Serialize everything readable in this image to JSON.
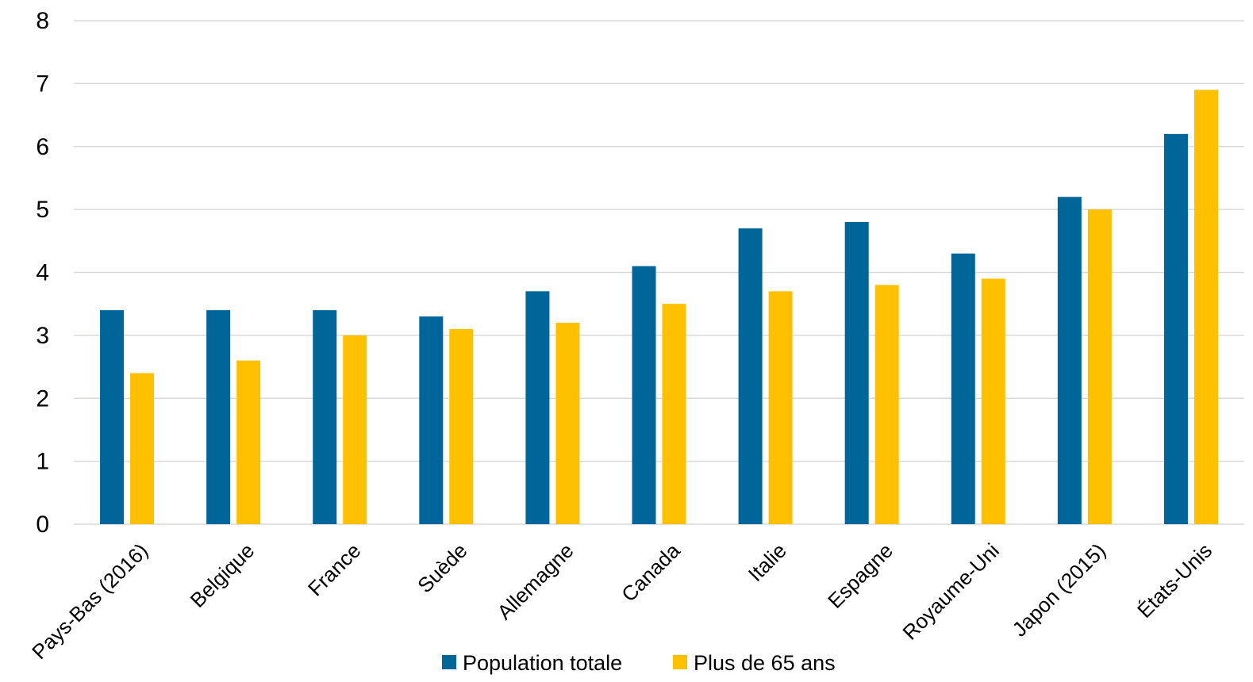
{
  "chart_data": {
    "type": "bar",
    "title": "",
    "xlabel": "",
    "ylabel": "",
    "ylim": [
      0,
      8
    ],
    "yticks": [
      "0",
      "1",
      "2",
      "3",
      "4",
      "5",
      "6",
      "7",
      "8"
    ],
    "grid": true,
    "legend_position": "bottom",
    "categories": [
      "Pays-Bas (2016)",
      "Belgique",
      "France",
      "Suède",
      "Allemagne",
      "Canada",
      "Italie",
      "Espagne",
      "Royaume-Uni",
      "Japon (2015)",
      "États-Unis"
    ],
    "series": [
      {
        "name": "Population totale",
        "color": "#006699",
        "values": [
          3.4,
          3.4,
          3.4,
          3.3,
          3.7,
          4.1,
          4.7,
          4.8,
          4.3,
          5.2,
          6.2
        ]
      },
      {
        "name": "Plus de 65 ans",
        "color": "#FFC000",
        "values": [
          2.4,
          2.6,
          3.0,
          3.1,
          3.2,
          3.5,
          3.7,
          3.8,
          3.9,
          5.0,
          6.9
        ]
      }
    ]
  }
}
